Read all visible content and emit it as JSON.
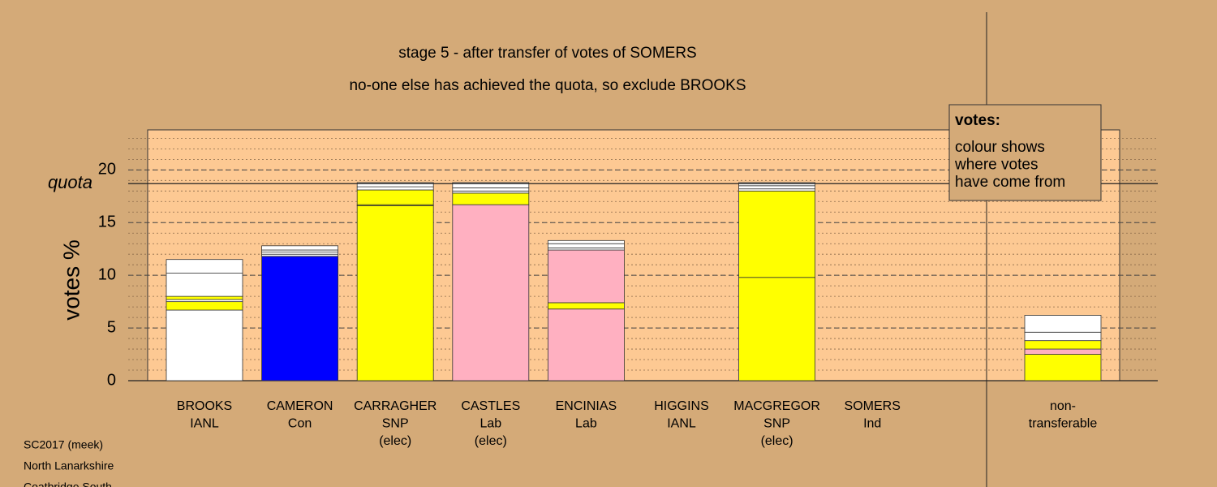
{
  "chart_data": {
    "type": "stacked_bar",
    "title": "stage 5 - after transfer of votes of SOMERS",
    "subtitle": "no-one else has achieved the quota, so exclude BROOKS",
    "y_label": "votes %",
    "quota_label": "quota",
    "quota": 18.7,
    "ylim": [
      0,
      23.8
    ],
    "yticks": [
      0,
      5,
      10,
      15,
      20
    ],
    "minor_grid_step": 1,
    "grid": true,
    "categories": [
      [
        "BROOKS",
        "IANL"
      ],
      [
        "CAMERON",
        "Con"
      ],
      [
        "CARRAGHER",
        "SNP",
        "(elec)"
      ],
      [
        "CASTLES",
        "Lab",
        "(elec)"
      ],
      [
        "ENCINIAS",
        "Lab"
      ],
      [
        "HIGGINS",
        "IANL"
      ],
      [
        "MACGREGOR",
        "SNP",
        "(elec)"
      ],
      [
        "SOMERS",
        "Ind"
      ],
      [
        "non-",
        "transferable"
      ]
    ],
    "segments": [
      [
        {
          "color": "#ffffff",
          "value": 6.7
        },
        {
          "color": "#ffff00",
          "value": 0.8
        },
        {
          "color": "#ffffff",
          "value": 0.2
        },
        {
          "color": "#ffff00",
          "value": 0.3
        },
        {
          "color": "#ffffff",
          "value": 2.2
        },
        {
          "color": "#ffffff",
          "value": 1.3
        }
      ],
      [
        {
          "color": "#0000ff",
          "value": 11.8
        },
        {
          "color": "#ffffff",
          "value": 0.2
        },
        {
          "color": "#ffffff",
          "value": 0.2
        },
        {
          "color": "#ffffff",
          "value": 0.2
        },
        {
          "color": "#ffffff",
          "value": 0.4
        }
      ],
      [
        {
          "color": "#ffff00",
          "value": 16.6
        },
        {
          "color": "#ffff00",
          "value": 0.1
        },
        {
          "color": "#ffff00",
          "value": 1.4
        },
        {
          "color": "#ffffff",
          "value": 0.3
        },
        {
          "color": "#ffffff",
          "value": 0.4
        }
      ],
      [
        {
          "color": "#ffb0c1",
          "value": 16.7
        },
        {
          "color": "#ffff00",
          "value": 1.1
        },
        {
          "color": "#ffffff",
          "value": 0.2
        },
        {
          "color": "#ffffff",
          "value": 0.3
        },
        {
          "color": "#ffffff",
          "value": 0.5
        }
      ],
      [
        {
          "color": "#ffb0c1",
          "value": 6.8
        },
        {
          "color": "#ffff00",
          "value": 0.6
        },
        {
          "color": "#ffb0c1",
          "value": 5.0
        },
        {
          "color": "#ffffff",
          "value": 0.2
        },
        {
          "color": "#ffffff",
          "value": 0.4
        },
        {
          "color": "#ffffff",
          "value": 0.3
        }
      ],
      [],
      [
        {
          "color": "#ffff00",
          "value": 9.8
        },
        {
          "color": "#ffff00",
          "value": 8.2
        },
        {
          "color": "#ffffff",
          "value": 0.2
        },
        {
          "color": "#ffffff",
          "value": 0.3
        },
        {
          "color": "#ffffff",
          "value": 0.3
        }
      ],
      [],
      [
        {
          "color": "#ffff00",
          "value": 2.5
        },
        {
          "color": "#ffb0c1",
          "value": 0.5
        },
        {
          "color": "#ffff00",
          "value": 0.8
        },
        {
          "color": "#ffffff",
          "value": 0.8
        },
        {
          "color": "#ffffff",
          "value": 1.6
        }
      ]
    ],
    "legend_box": [
      "votes:",
      "colour shows",
      "where votes",
      "have come from"
    ],
    "footer": [
      "SC2017 (meek)",
      "North Lanarkshire",
      "Coatbridge South"
    ]
  }
}
